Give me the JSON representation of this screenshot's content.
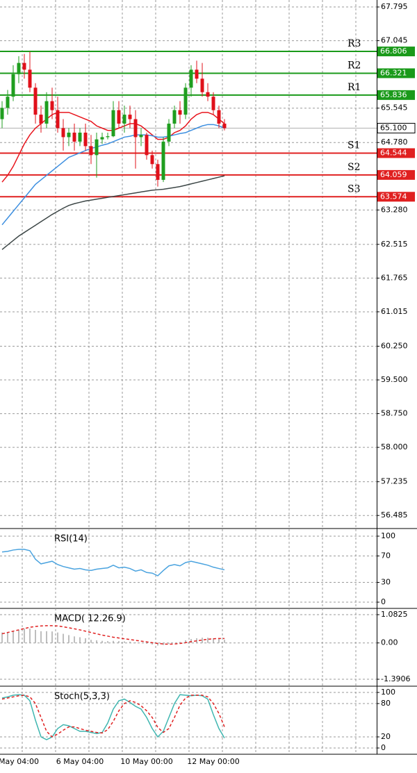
{
  "chart_data": [
    {
      "type": "candlestick",
      "categories": [
        null,
        null,
        null,
        "May 04:00",
        null,
        null,
        null,
        null,
        null,
        null,
        null,
        null,
        null,
        null,
        "6 May 04:00",
        null,
        null,
        null,
        null,
        null,
        null,
        null,
        null,
        null,
        null,
        null,
        "10 May 00:00",
        null,
        null,
        null,
        null,
        null,
        null,
        null,
        null,
        null,
        null,
        null,
        "12 May 00:00",
        null,
        null
      ],
      "open": [
        65.3,
        65.55,
        65.8,
        66.3,
        66.55,
        66.4,
        66.0,
        65.4,
        65.2,
        65.7,
        65.5,
        65.1,
        64.9,
        65.0,
        64.8,
        65.0,
        64.7,
        64.5,
        64.85,
        64.9,
        64.92,
        65.5,
        65.2,
        65.4,
        65.3,
        64.9,
        64.95,
        64.5,
        64.3,
        63.95,
        64.8,
        65.2,
        65.5,
        65.4,
        66.0,
        66.4,
        66.2,
        65.9,
        65.8,
        65.5,
        65.2
      ],
      "high": [
        65.7,
        65.95,
        66.5,
        66.7,
        66.75,
        66.8,
        66.1,
        65.6,
        65.9,
        66.0,
        65.8,
        65.3,
        65.1,
        65.2,
        65.1,
        65.2,
        64.95,
        65.0,
        65.0,
        65.0,
        65.7,
        65.7,
        65.6,
        65.6,
        65.5,
        65.1,
        65.0,
        64.6,
        64.4,
        64.9,
        65.3,
        65.6,
        65.7,
        66.1,
        66.5,
        66.6,
        66.55,
        66.1,
        65.9,
        65.6,
        65.3
      ],
      "low": [
        65.1,
        65.4,
        65.7,
        66.1,
        66.2,
        65.9,
        65.2,
        65.0,
        65.1,
        65.3,
        65.0,
        64.6,
        64.7,
        64.6,
        64.7,
        64.6,
        64.3,
        64.0,
        64.75,
        64.85,
        64.9,
        65.1,
        65.0,
        65.1,
        64.2,
        64.7,
        64.4,
        64.2,
        63.8,
        63.9,
        64.7,
        65.1,
        65.2,
        65.3,
        65.8,
        66.1,
        65.8,
        65.7,
        65.4,
        65.1,
        65.05
      ],
      "close": [
        65.55,
        65.8,
        66.3,
        66.55,
        66.4,
        66.0,
        65.4,
        65.2,
        65.7,
        65.5,
        65.1,
        64.9,
        65.0,
        64.8,
        65.0,
        64.7,
        64.5,
        64.85,
        64.9,
        64.92,
        65.5,
        65.2,
        65.4,
        65.3,
        64.9,
        64.95,
        64.5,
        64.3,
        63.95,
        64.8,
        65.2,
        65.5,
        65.4,
        66.0,
        66.4,
        66.2,
        65.9,
        65.8,
        65.5,
        65.2,
        65.1
      ],
      "up_color": "#1f9e1f",
      "down_color": "#e0101a",
      "series": [
        {
          "color": "#e8141c",
          "values": [
            63.9,
            64.05,
            64.25,
            64.5,
            64.75,
            64.95,
            65.1,
            65.2,
            65.3,
            65.4,
            65.45,
            65.45,
            65.45,
            65.4,
            65.35,
            65.3,
            65.25,
            65.15,
            65.1,
            65.05,
            65.05,
            65.1,
            65.15,
            65.2,
            65.2,
            65.15,
            65.05,
            64.95,
            64.85,
            64.85,
            64.9,
            65.0,
            65.05,
            65.15,
            65.3,
            65.4,
            65.45,
            65.45,
            65.4,
            65.3,
            65.2
          ]
        },
        {
          "color": "#3d8fe0",
          "values": [
            62.95,
            63.1,
            63.25,
            63.4,
            63.55,
            63.7,
            63.85,
            63.95,
            64.05,
            64.15,
            64.25,
            64.35,
            64.45,
            64.5,
            64.55,
            64.6,
            64.65,
            64.68,
            64.72,
            64.75,
            64.8,
            64.85,
            64.9,
            64.92,
            64.95,
            64.95,
            64.95,
            64.93,
            64.9,
            64.9,
            64.92,
            64.95,
            64.98,
            65.0,
            65.05,
            65.1,
            65.15,
            65.18,
            65.18,
            65.15,
            65.1
          ]
        },
        {
          "color": "#3c4646",
          "values": [
            62.4,
            62.5,
            62.6,
            62.7,
            62.78,
            62.86,
            62.94,
            63.02,
            63.1,
            63.18,
            63.25,
            63.32,
            63.38,
            63.42,
            63.45,
            63.48,
            63.5,
            63.52,
            63.54,
            63.56,
            63.58,
            63.6,
            63.62,
            63.64,
            63.66,
            63.68,
            63.7,
            63.72,
            63.73,
            63.74,
            63.76,
            63.78,
            63.8,
            63.83,
            63.86,
            63.89,
            63.92,
            63.95,
            63.98,
            64.01,
            64.04
          ]
        }
      ],
      "levels": [
        {
          "name": "R3",
          "value": 66.806,
          "color": "#1a9a1a"
        },
        {
          "name": "R2",
          "value": 66.321,
          "color": "#1a9a1a"
        },
        {
          "name": "R1",
          "value": 65.836,
          "color": "#1a9a1a"
        },
        {
          "name": "S1",
          "value": 64.544,
          "color": "#e02020"
        },
        {
          "name": "S2",
          "value": 64.059,
          "color": "#e02020"
        },
        {
          "name": "S3",
          "value": 63.574,
          "color": "#e02020"
        }
      ],
      "current_price": {
        "value": 65.1,
        "label": "65.100"
      },
      "ylim": [
        56.21,
        67.95
      ],
      "yticks": [
        67.795,
        67.045,
        65.545,
        {
          "value": 64.78,
          "label": "64.780"
        },
        {
          "value": 63.28,
          "label": "63.280"
        },
        62.515,
        61.765,
        61.015,
        {
          "value": 60.25,
          "label": "60.250"
        },
        {
          "value": 59.5,
          "label": "59.500"
        },
        {
          "value": 58.75,
          "label": "58.750"
        },
        {
          "value": 58,
          "label": "58.000"
        },
        57.235,
        56.485
      ],
      "grid": true
    },
    {
      "type": "line",
      "title": "RSI(14)",
      "series": [
        {
          "color": "#4aa3df",
          "values": [
            76,
            77,
            79,
            80,
            80,
            78,
            65,
            58,
            60,
            62,
            57,
            54,
            52,
            50,
            51,
            49,
            48,
            50,
            51,
            52,
            56,
            52,
            53,
            51,
            47,
            49,
            45,
            44,
            40,
            48,
            55,
            57,
            55,
            60,
            62,
            60,
            58,
            56,
            53,
            51,
            49
          ]
        }
      ],
      "ylim": [
        -8.4,
        110.5
      ],
      "yticks": [
        100,
        70,
        30,
        0
      ],
      "grid": true
    },
    {
      "type": "macd",
      "title": "MACD( 12.26.9)",
      "series": [
        {
          "type": "bar",
          "color": "#a8a8a8",
          "values": [
            0.4,
            0.42,
            0.45,
            0.5,
            0.55,
            0.55,
            0.5,
            0.45,
            0.45,
            0.44,
            0.4,
            0.35,
            0.3,
            0.25,
            0.22,
            0.18,
            0.12,
            0.1,
            0.08,
            0.07,
            0.08,
            0.07,
            0.06,
            0.05,
            0.02,
            0.0,
            -0.03,
            -0.06,
            -0.1,
            -0.08,
            -0.04,
            0.0,
            0.04,
            0.1,
            0.15,
            0.18,
            0.2,
            0.2,
            0.18,
            0.15,
            0.12
          ]
        },
        {
          "type": "line",
          "dashed": true,
          "color": "#e02020",
          "values": [
            0.35,
            0.4,
            0.45,
            0.5,
            0.55,
            0.6,
            0.63,
            0.65,
            0.66,
            0.66,
            0.65,
            0.62,
            0.58,
            0.54,
            0.5,
            0.45,
            0.4,
            0.35,
            0.3,
            0.26,
            0.22,
            0.19,
            0.16,
            0.13,
            0.1,
            0.07,
            0.04,
            0.01,
            -0.02,
            -0.04,
            -0.05,
            -0.04,
            -0.02,
            0.01,
            0.05,
            0.08,
            0.11,
            0.14,
            0.16,
            0.17,
            0.17
          ]
        }
      ],
      "ylim": [
        -1.63,
        1.296
      ],
      "yticks": [
        1.0825,
        {
          "value": 0,
          "label": "0.00"
        },
        -1.3906
      ],
      "grid": true
    },
    {
      "type": "line",
      "title": "Stoch(5,3,3)",
      "series": [
        {
          "color": "#3fb6b0",
          "values": [
            90,
            92,
            95,
            96,
            95,
            85,
            50,
            20,
            15,
            20,
            35,
            42,
            40,
            35,
            30,
            30,
            28,
            26,
            28,
            45,
            70,
            85,
            88,
            82,
            75,
            70,
            55,
            35,
            20,
            30,
            55,
            80,
            96,
            95,
            94,
            95,
            94,
            88,
            60,
            35,
            18
          ]
        },
        {
          "dashed": true,
          "color": "#e02020",
          "values": [
            88,
            90,
            92,
            94,
            95,
            92,
            80,
            55,
            30,
            20,
            25,
            32,
            38,
            38,
            35,
            32,
            30,
            28,
            27,
            33,
            48,
            67,
            80,
            85,
            82,
            76,
            67,
            55,
            37,
            28,
            35,
            55,
            77,
            90,
            95,
            95,
            95,
            92,
            80,
            62,
            38
          ]
        }
      ],
      "ylim": [
        -10,
        110
      ],
      "yticks": [
        100,
        80,
        20,
        0
      ],
      "grid": true
    }
  ]
}
